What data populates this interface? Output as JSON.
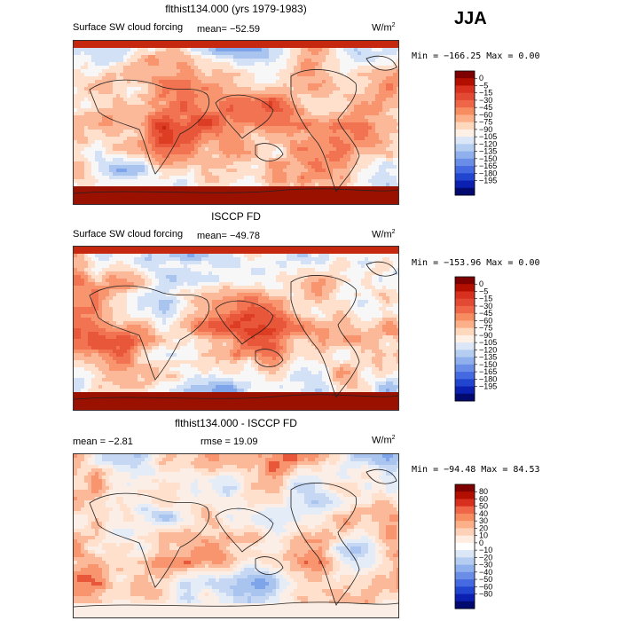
{
  "season_label": "JJA",
  "panels": [
    {
      "title": "flthist134.000 (yrs 1979-1983)",
      "left_label": "Surface SW cloud forcing",
      "mean_text": "mean= −52.59",
      "rmse_text": "",
      "units_text": "W/m",
      "units_sup": "2",
      "minmax_text": "Min = −166.25 Max =    0.00",
      "colorbar": {
        "labels": [
          "0",
          "−5",
          "−15",
          "−30",
          "−45",
          "−60",
          "−75",
          "−90",
          "−105",
          "−120",
          "−135",
          "−150",
          "−165",
          "−180",
          "−195"
        ],
        "colors": [
          "#7f0000",
          "#b30f00",
          "#d7301f",
          "#e34a33",
          "#ef6548",
          "#f68c60",
          "#fcb08a",
          "#fdd8bd",
          "#fff0e6",
          "#dbe6f7",
          "#b5cdf0",
          "#8fb0ec",
          "#6a8de8",
          "#4569e0",
          "#2245d0",
          "#0b1fb0",
          "#020a70"
        ]
      },
      "palette": [
        "#9b1100",
        "#c5280f",
        "#dd3d22",
        "#e9573a",
        "#f27352",
        "#f8956f",
        "#fcb99a",
        "#fee0cc",
        "#f7f7f7",
        "#d3e1f6",
        "#a9c4ef",
        "#7ea4ea",
        "#5480e4",
        "#2f58d6"
      ]
    },
    {
      "title": "ISCCP FD",
      "left_label": "Surface SW cloud forcing",
      "mean_text": "mean= −49.78",
      "rmse_text": "",
      "units_text": "W/m",
      "units_sup": "2",
      "minmax_text": "Min = −153.96 Max =    0.00",
      "colorbar": {
        "labels": [
          "0",
          "−5",
          "−15",
          "−30",
          "−45",
          "−60",
          "−75",
          "−90",
          "−105",
          "−120",
          "−135",
          "−150",
          "−165",
          "−180",
          "−195"
        ],
        "colors": [
          "#7f0000",
          "#b30f00",
          "#d7301f",
          "#e34a33",
          "#ef6548",
          "#f68c60",
          "#fcb08a",
          "#fdd8bd",
          "#fff0e6",
          "#dbe6f7",
          "#b5cdf0",
          "#8fb0ec",
          "#6a8de8",
          "#4569e0",
          "#2245d0",
          "#0b1fb0",
          "#020a70"
        ]
      },
      "palette": [
        "#9b1100",
        "#c5280f",
        "#dd3d22",
        "#e9573a",
        "#f27352",
        "#f8956f",
        "#fcb99a",
        "#fee0cc",
        "#f7f7f7",
        "#d3e1f6",
        "#a9c4ef",
        "#7ea4ea",
        "#5480e4",
        "#2f58d6"
      ]
    },
    {
      "title": "flthist134.000 - ISCCP FD",
      "left_label": "",
      "mean_text": "mean =   −2.81",
      "rmse_text": "rmse =   19.09",
      "units_text": "W/m",
      "units_sup": "2",
      "minmax_text": "Min = −94.48 Max =  84.53",
      "colorbar": {
        "labels": [
          "80",
          "60",
          "50",
          "40",
          "30",
          "20",
          "10",
          "0",
          "−10",
          "−20",
          "−30",
          "−40",
          "−50",
          "−60",
          "−80"
        ],
        "colors": [
          "#7f0000",
          "#b30f00",
          "#d7301f",
          "#ef6548",
          "#f68c60",
          "#fcb08a",
          "#fdd0b8",
          "#ffede2",
          "#ffffff",
          "#dbe6f7",
          "#b5cdf0",
          "#8fb0ec",
          "#6a8de8",
          "#4569e0",
          "#2245d0",
          "#0b1fb0",
          "#020a70"
        ]
      },
      "palette": [
        "#c5280f",
        "#e9573a",
        "#f8956f",
        "#fcb99a",
        "#fee0cc",
        "#fbeee6",
        "#e4ecf8",
        "#c6d7f3",
        "#a9c4ef",
        "#7ea4ea",
        "#5480e4",
        "#2f58d6"
      ]
    }
  ]
}
